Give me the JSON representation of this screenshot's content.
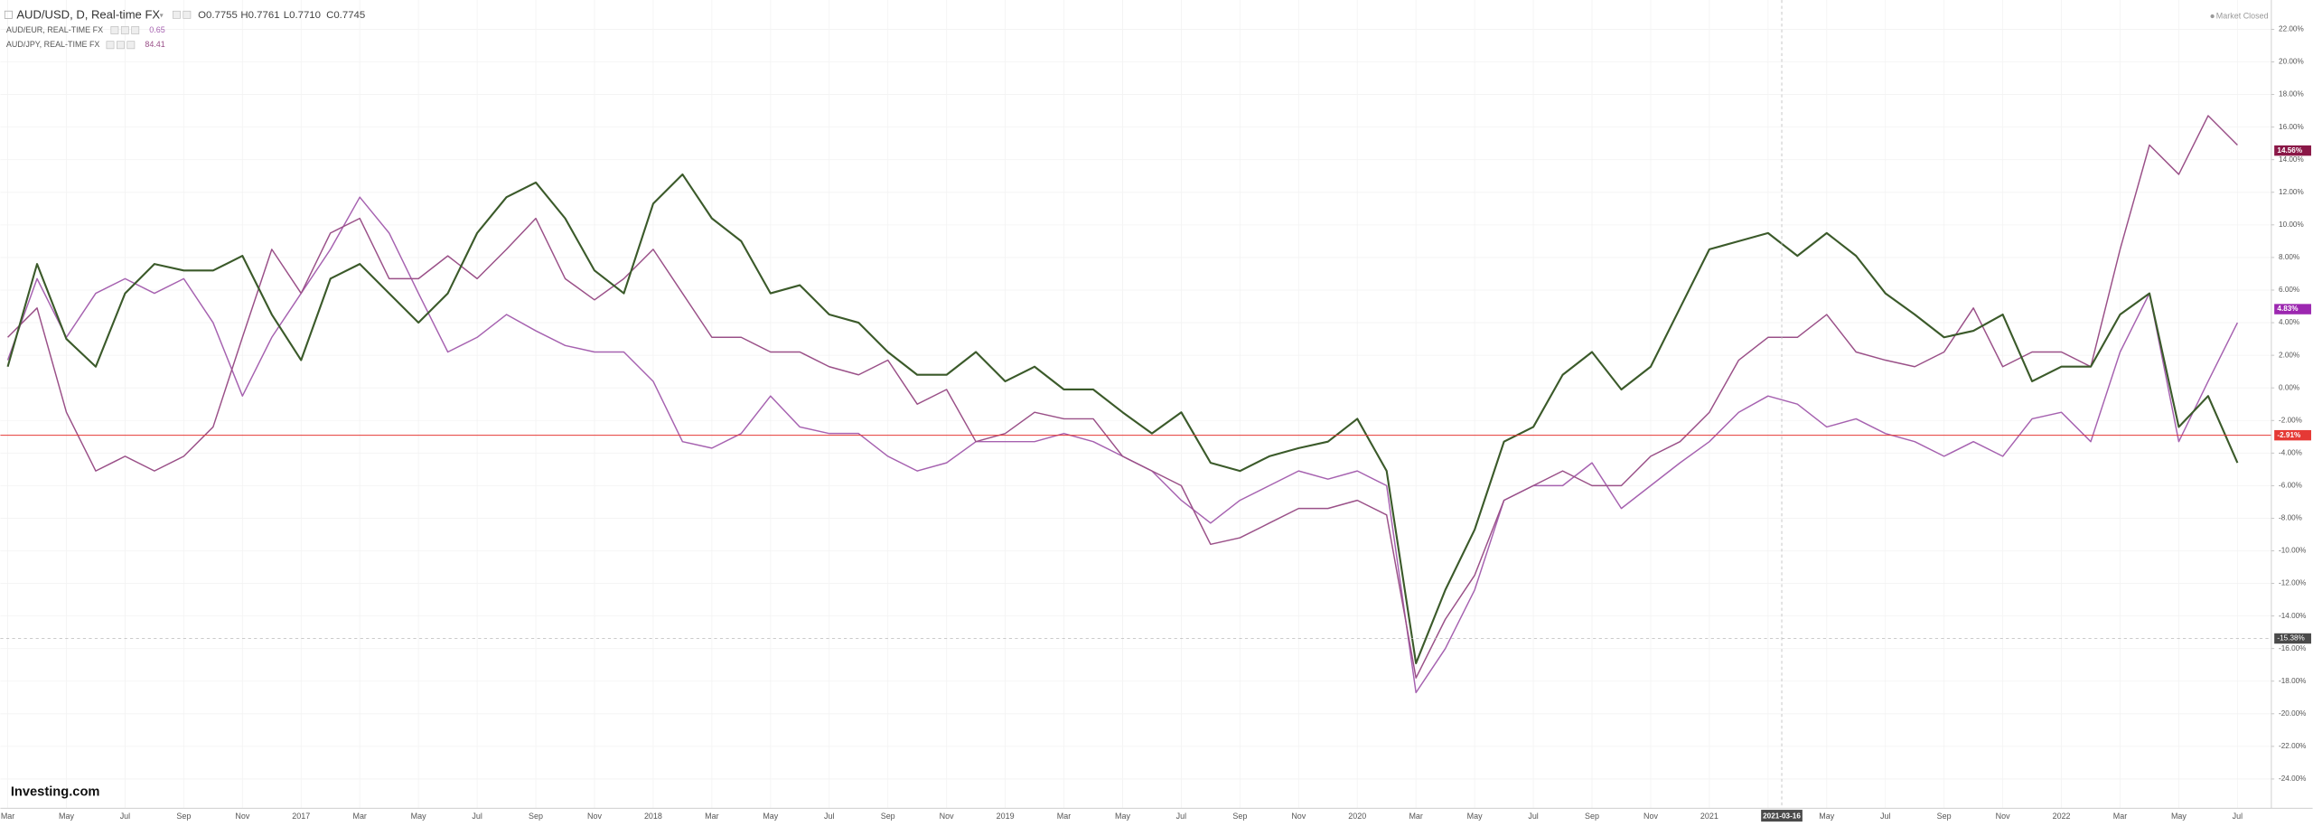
{
  "chart_data": {
    "type": "line",
    "header": {
      "symbol": "AUD/USD, D, Real-time FX",
      "ohlc": [
        "O0.7755",
        "H0.7761",
        "L0.7710",
        "C0.7745"
      ],
      "status": "Market Closed",
      "brand": "Investing.com"
    },
    "categories": [
      "Mar",
      null,
      "May",
      null,
      "Jul",
      null,
      "Sep",
      null,
      "Nov",
      null,
      "2017",
      null,
      "Mar",
      null,
      "May",
      null,
      "Jul",
      null,
      "Sep",
      null,
      "Nov",
      null,
      "2018",
      null,
      "Mar",
      null,
      "May",
      null,
      "Jul",
      null,
      "Sep",
      null,
      "Nov",
      null,
      "2019",
      null,
      "Mar",
      null,
      "May",
      null,
      "Jul",
      null,
      "Sep",
      null,
      "Nov",
      null,
      "2020",
      null,
      "Mar",
      null,
      "May",
      null,
      "Jul",
      null,
      "Sep",
      null,
      "Nov",
      null,
      "2021",
      null,
      "Mar",
      null,
      "May",
      null,
      "Jul",
      null,
      "Sep",
      null,
      "Nov",
      null,
      "2022",
      null,
      "Mar",
      null,
      "May",
      null,
      "Jul"
    ],
    "series": [
      {
        "name": "AUD/USD, D, Real-time FX",
        "color": "#3b5a2a",
        "values": [
          1.3,
          7.6,
          3,
          1.3,
          5.8,
          7.6,
          7.2,
          7.2,
          8.1,
          4.5,
          1.7,
          6.7,
          7.6,
          5.8,
          4,
          5.8,
          9.5,
          11.7,
          12.6,
          10.4,
          7.2,
          5.8,
          11.3,
          13.1,
          10.4,
          9,
          5.8,
          6.3,
          4.5,
          4,
          2.2,
          0.8,
          0.8,
          2.2,
          0.4,
          1.3,
          -0.1,
          -0.1,
          -1.5,
          -2.8,
          -1.5,
          -4.6,
          -5.1,
          -4.2,
          -3.7,
          -3.3,
          -1.9,
          -5.1,
          -16.9,
          -12.4,
          -8.7,
          -3.3,
          -2.4,
          0.8,
          2.2,
          -0.1,
          1.3,
          4.9,
          8.5,
          9,
          9.5,
          8.1,
          9.5,
          8.1,
          5.8,
          4.5,
          3.1,
          3.5,
          4.5,
          0.4,
          1.3,
          1.3,
          4.5,
          5.8,
          -2.4,
          -0.5,
          -4.6
        ]
      },
      {
        "name": "AUD/EUR, REAL-TIME FX",
        "color": "#a662b0",
        "last_value": 0.65,
        "values": [
          1.7,
          6.7,
          3.1,
          5.8,
          6.7,
          5.8,
          6.7,
          4,
          -0.5,
          3.1,
          5.8,
          8.5,
          11.7,
          9.5,
          5.8,
          2.2,
          3.1,
          4.5,
          3.5,
          2.6,
          2.2,
          2.2,
          0.4,
          -3.3,
          -3.7,
          -2.8,
          -0.5,
          -2.4,
          -2.8,
          -2.8,
          -4.2,
          -5.1,
          -4.6,
          -3.3,
          -3.3,
          -3.3,
          -2.8,
          -3.3,
          -4.2,
          -5.1,
          -6.9,
          -8.3,
          -6.9,
          -6,
          -5.1,
          -5.6,
          -5.1,
          -6,
          -18.7,
          -16,
          -12.4,
          -6.9,
          -6,
          -6,
          -4.6,
          -7.4,
          -6,
          -4.6,
          -3.3,
          -1.5,
          -0.5,
          -1,
          -2.4,
          -1.9,
          -2.8,
          -3.3,
          -4.2,
          -3.3,
          -4.2,
          -1.9,
          -1.5,
          -3.3,
          2.2,
          5.8,
          -3.3,
          0.4,
          4
        ]
      },
      {
        "name": "AUD/JPY, REAL-TIME FX",
        "color": "#9a5088",
        "last_value": 84.41,
        "values": [
          3.1,
          4.9,
          -1.5,
          -5.1,
          -4.2,
          -5.1,
          -4.2,
          -2.4,
          3.1,
          8.5,
          5.8,
          9.5,
          10.4,
          6.7,
          6.7,
          8.1,
          6.7,
          8.5,
          10.4,
          6.7,
          5.4,
          6.7,
          8.5,
          5.8,
          3.1,
          3.1,
          2.2,
          2.2,
          1.3,
          0.8,
          1.7,
          -1,
          -0.1,
          -3.3,
          -2.8,
          -1.5,
          -1.9,
          -1.9,
          -4.2,
          -5.1,
          -6,
          -9.6,
          -9.2,
          -8.3,
          -7.4,
          -7.4,
          -6.9,
          -7.8,
          -17.8,
          -14.2,
          -11.5,
          -6.9,
          -6,
          -5.1,
          -6,
          -6,
          -4.2,
          -3.3,
          -1.5,
          1.7,
          3.1,
          3.1,
          4.5,
          2.2,
          1.7,
          1.3,
          2.2,
          4.9,
          1.3,
          2.2,
          2.2,
          1.3,
          8.5,
          14.9,
          13.1,
          16.7,
          14.9
        ]
      }
    ],
    "ylim": [
      -25.8,
      23.8
    ],
    "yticks": [
      {
        "value": 22,
        "label": "22.00%"
      },
      {
        "value": 20,
        "label": "20.00%"
      },
      {
        "value": 18,
        "label": "18.00%"
      },
      {
        "value": 16,
        "label": "16.00%"
      },
      {
        "value": 14,
        "label": "14.00%"
      },
      {
        "value": 12,
        "label": "12.00%"
      },
      {
        "value": 10,
        "label": "10.00%"
      },
      {
        "value": 8,
        "label": "8.00%"
      },
      {
        "value": 6,
        "label": "6.00%"
      },
      {
        "value": 4,
        "label": "4.00%"
      },
      {
        "value": 2,
        "label": "2.00%"
      },
      {
        "value": 0,
        "label": "0.00%"
      },
      {
        "value": -2,
        "label": "-2.00%"
      },
      {
        "value": -4,
        "label": "-4.00%"
      },
      {
        "value": -6,
        "label": "-6.00%"
      },
      {
        "value": -8,
        "label": "-8.00%"
      },
      {
        "value": -10,
        "label": "-10.00%"
      },
      {
        "value": -12,
        "label": "-12.00%"
      },
      {
        "value": -14,
        "label": "-14.00%"
      },
      {
        "value": -16,
        "label": "-16.00%"
      },
      {
        "value": -18,
        "label": "-18.00%"
      },
      {
        "value": -20,
        "label": "-20.00%"
      },
      {
        "value": -22,
        "label": "-22.00%"
      },
      {
        "value": -24,
        "label": "-24.00%"
      }
    ],
    "price_labels": [
      {
        "value": 14.56,
        "label": "14.56%",
        "color": "#8a1747"
      },
      {
        "value": 4.83,
        "label": "4.83%",
        "color": "#9c27b0"
      },
      {
        "value": -2.91,
        "label": "-2.91%",
        "color": "#e53935"
      }
    ],
    "crosshair": {
      "x_label": "2021-03-16",
      "y": {
        "value": -15.38,
        "label": "-15.38%"
      }
    },
    "grid": true
  }
}
